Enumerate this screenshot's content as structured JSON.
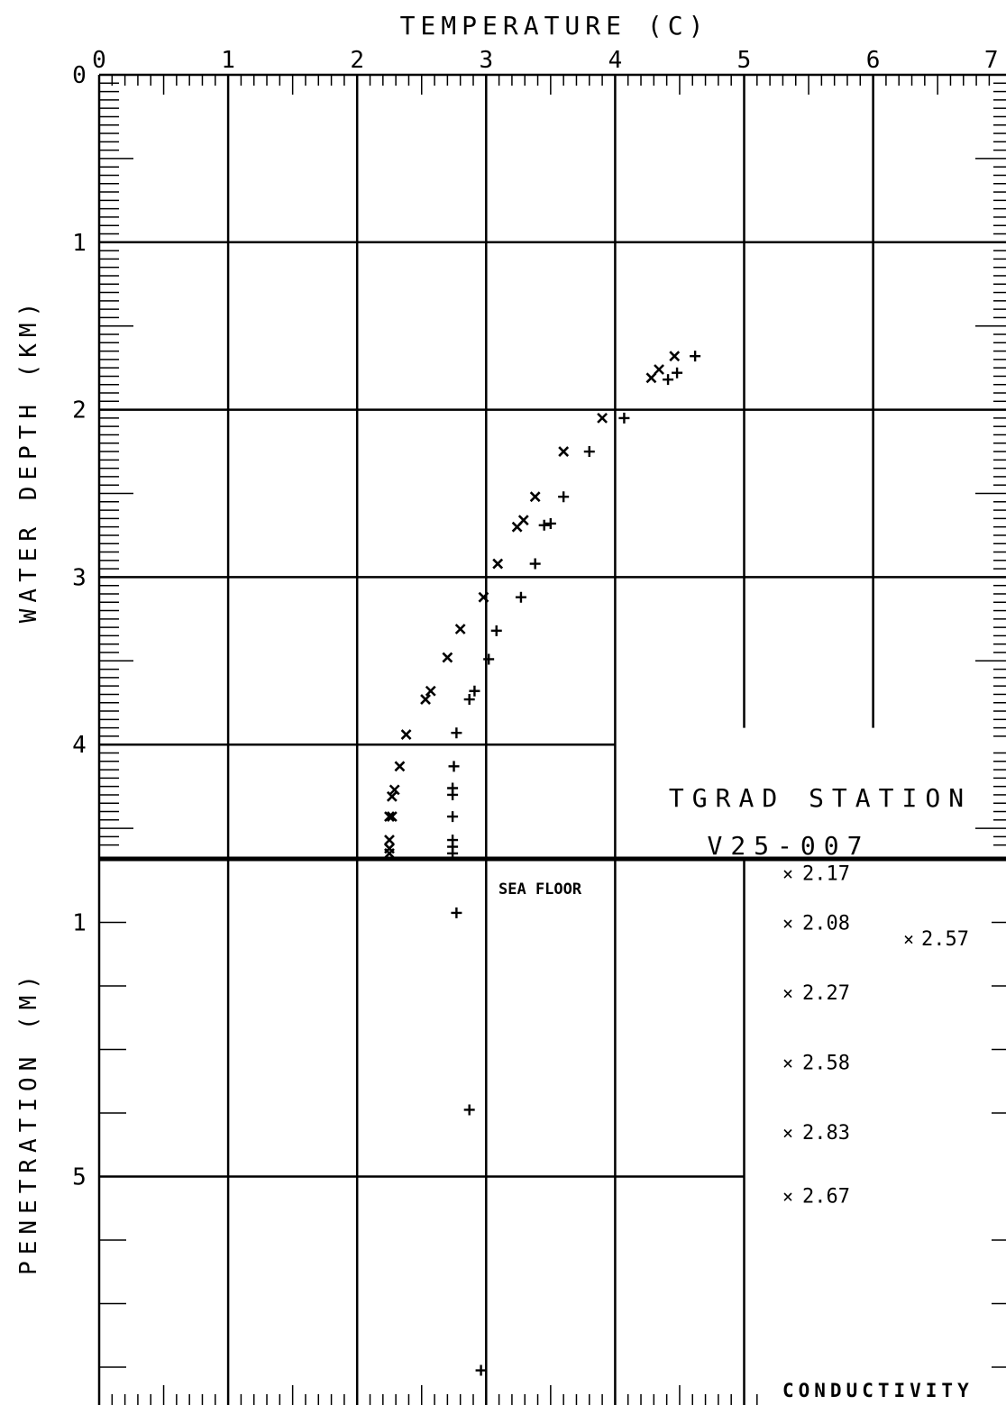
{
  "chart_data": {
    "type": "scatter",
    "title": "TEMPERATURE (C)",
    "annotation_title": "TGRAD STATION",
    "station_id": "V25-007",
    "sea_floor_label": "SEA FLOOR",
    "conductivity_label": "CONDUCTIVITY",
    "x_axis": {
      "label": "TEMPERATURE (C)",
      "range": [
        0,
        7
      ],
      "ticks": [
        "0",
        "1",
        "2",
        "3",
        "4",
        "5",
        "6",
        "7"
      ]
    },
    "upper_y_axis": {
      "label": "WATER DEPTH (KM)",
      "range": [
        0,
        4.65
      ],
      "inverted": true,
      "ticks": [
        "0",
        "1",
        "2",
        "3",
        "4"
      ]
    },
    "lower_y_axis": {
      "label": "PENETRATION (M)",
      "range": [
        0,
        9.6
      ],
      "inverted": true,
      "ticks": [
        "1",
        "5"
      ]
    },
    "water_x": [
      [
        4.46,
        1.68
      ],
      [
        4.34,
        1.76
      ],
      [
        4.28,
        1.81
      ],
      [
        3.9,
        2.05
      ],
      [
        3.6,
        2.25
      ],
      [
        3.38,
        2.52
      ],
      [
        3.29,
        2.66
      ],
      [
        3.24,
        2.7
      ],
      [
        3.09,
        2.92
      ],
      [
        2.98,
        3.12
      ],
      [
        2.8,
        3.31
      ],
      [
        2.7,
        3.48
      ],
      [
        2.57,
        3.68
      ],
      [
        2.53,
        3.73
      ],
      [
        2.38,
        3.94
      ],
      [
        2.33,
        4.13
      ],
      [
        2.29,
        4.27
      ],
      [
        2.27,
        4.31
      ],
      [
        2.25,
        4.43
      ],
      [
        2.27,
        4.43
      ],
      [
        2.25,
        4.57
      ],
      [
        2.25,
        4.62
      ],
      [
        2.25,
        4.65
      ]
    ],
    "water_plus": [
      [
        4.62,
        1.68
      ],
      [
        4.48,
        1.78
      ],
      [
        4.41,
        1.82
      ],
      [
        4.07,
        2.05
      ],
      [
        3.8,
        2.25
      ],
      [
        3.6,
        2.52
      ],
      [
        3.5,
        2.68
      ],
      [
        3.45,
        2.69
      ],
      [
        3.38,
        2.92
      ],
      [
        3.27,
        3.12
      ],
      [
        3.08,
        3.32
      ],
      [
        3.02,
        3.49
      ],
      [
        2.91,
        3.68
      ],
      [
        2.87,
        3.73
      ],
      [
        2.77,
        3.93
      ],
      [
        2.75,
        4.13
      ],
      [
        2.74,
        4.26
      ],
      [
        2.74,
        4.3
      ],
      [
        2.74,
        4.43
      ],
      [
        2.74,
        4.57
      ],
      [
        2.74,
        4.61
      ],
      [
        2.74,
        4.65
      ]
    ],
    "sediment_plus": [
      [
        2.77,
        0.85
      ],
      [
        2.87,
        3.95
      ],
      [
        2.96,
        8.05
      ]
    ],
    "conductivity_series": [
      {
        "value": "2.17",
        "penetration_m": 0.22
      },
      {
        "value": "2.08",
        "penetration_m": 1.0
      },
      {
        "value": "2.27",
        "penetration_m": 2.1
      },
      {
        "value": "2.58",
        "penetration_m": 3.2
      },
      {
        "value": "2.83",
        "penetration_m": 4.3
      },
      {
        "value": "2.67",
        "penetration_m": 5.3
      }
    ],
    "conductivity_side": {
      "value": "2.57",
      "penetration_m": 1.25
    },
    "grid": true,
    "legend": "none"
  }
}
